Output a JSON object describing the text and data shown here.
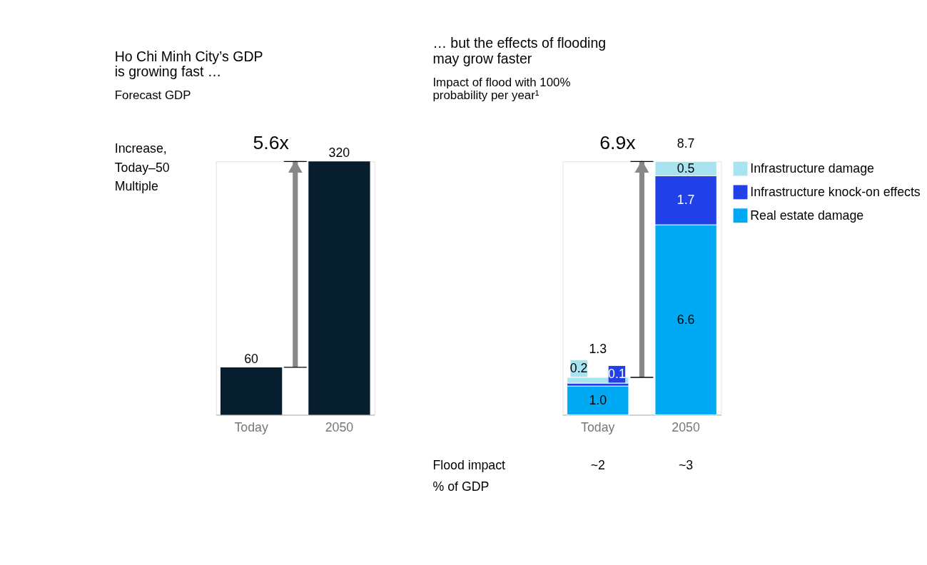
{
  "chart_data": [
    {
      "type": "bar",
      "title": "Ho Chi Minh City’s GDP is growing fast …",
      "subtitle": "Forecast GDP",
      "categories": [
        "Today",
        "2050"
      ],
      "values": [
        60,
        320
      ],
      "color": "#071e2e",
      "data_labels": true,
      "annotations": [
        "Increase, Today–50 Multiple",
        "5.6x"
      ]
    },
    {
      "type": "bar",
      "title": "… but the effects of flooding may grow faster",
      "subtitle": "Impact of flood with 100% probability per year¹",
      "categories": [
        "Today",
        "2050"
      ],
      "stacked": true,
      "data_labels": true,
      "totals": [
        "1.3",
        "8.7"
      ],
      "legend": "right",
      "series": [
        {
          "name": "Real estate damage",
          "color": "#00a9f4",
          "values": [
            1.0,
            6.6
          ],
          "value_labels": [
            "1.0",
            "6.6"
          ]
        },
        {
          "name": "Infrastructure knock-on effects",
          "color": "#2140e8",
          "values": [
            0.1,
            1.7
          ],
          "value_labels": [
            "0.1",
            "1.7"
          ]
        },
        {
          "name": "Infrastructure damage",
          "color": "#a8e4ef",
          "values": [
            0.2,
            0.5
          ],
          "value_labels": [
            "0.2",
            "0.5"
          ]
        }
      ],
      "annotations": [
        "6.9x",
        "Flood impact % of GDP",
        "~2",
        "~3"
      ]
    }
  ]
}
